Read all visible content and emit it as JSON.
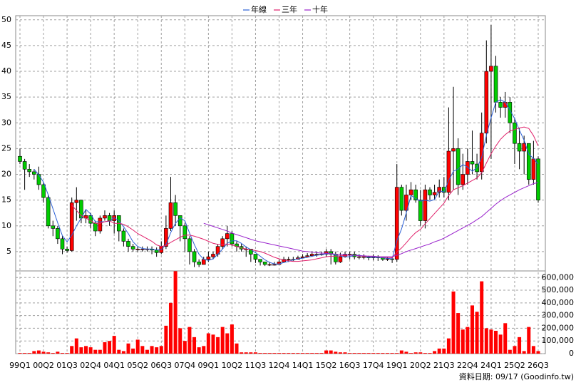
{
  "chart_data": {
    "type": "candlestick",
    "categories": [
      "99Q1",
      null,
      null,
      null,
      null,
      "00Q2",
      null,
      null,
      null,
      null,
      "01Q3",
      null,
      null,
      null,
      null,
      "02Q4",
      null,
      null,
      null,
      null,
      "04Q1",
      null,
      null,
      null,
      null,
      "05Q2",
      null,
      null,
      null,
      null,
      "06Q3",
      null,
      null,
      null,
      null,
      "07Q4",
      null,
      null,
      null,
      null,
      "09Q1",
      null,
      null,
      null,
      null,
      "10Q2",
      null,
      null,
      null,
      null,
      "11Q3",
      null,
      null,
      null,
      null,
      "12Q4",
      null,
      null,
      null,
      null,
      "14Q1",
      null,
      null,
      null,
      null,
      "15Q2",
      null,
      null,
      null,
      null,
      "16Q3",
      null,
      null,
      null,
      null,
      "17Q4",
      null,
      null,
      null,
      null,
      "19Q1",
      null,
      null,
      null,
      null,
      "20Q2",
      null,
      null,
      null,
      null,
      "21Q3",
      null,
      null,
      null,
      null,
      "22Q4",
      null,
      null,
      null,
      null,
      "24Q1",
      null,
      null,
      null,
      null,
      "25Q2",
      null,
      null,
      null,
      null,
      "26Q3"
    ],
    "open": [
      23.5,
      22.5,
      21,
      20.5,
      20,
      18,
      15.5,
      10,
      9.5,
      7.5,
      5.5,
      5.2,
      14.5,
      15,
      11.5,
      12,
      10.5,
      9,
      11.5,
      12,
      11,
      12,
      9,
      7,
      6,
      5.5,
      5.5,
      5.5,
      5.5,
      5.3,
      4.8,
      6,
      9.5,
      14.5,
      12,
      10,
      7.5,
      5,
      3,
      2.5,
      3.5,
      4,
      4.5,
      6,
      7.5,
      8.5,
      6.5,
      6,
      5.5,
      5.5,
      4.5,
      3.5,
      3,
      2.5,
      2.5,
      2.5,
      3,
      3.5,
      3.5,
      3.5,
      3.8,
      4,
      4.2,
      4.5,
      4.5,
      4.5,
      5,
      4.5,
      3,
      4,
      4.5,
      4.5,
      4,
      4,
      4,
      3.8,
      4,
      3.8,
      3.5,
      3.6,
      3.5,
      17.5,
      13,
      16,
      17,
      15,
      11,
      17,
      16,
      16.5,
      17.5,
      16.5,
      24.5,
      25,
      18,
      20,
      22.5,
      22,
      20.5,
      28,
      40,
      41,
      34,
      33,
      34,
      30,
      26,
      24.5,
      26,
      19,
      23
    ],
    "high": [
      25,
      23,
      22,
      21,
      21.5,
      18.5,
      16,
      11,
      10,
      8,
      6,
      15.5,
      17.5,
      15,
      13,
      12.5,
      11,
      12,
      13,
      12.5,
      13,
      12,
      9.5,
      7.5,
      6.5,
      6,
      6,
      6,
      6,
      5.8,
      7,
      12,
      19.5,
      16,
      12,
      10.5,
      8,
      5.5,
      3.5,
      4,
      5,
      5,
      6.5,
      8,
      10,
      9,
      7,
      6.5,
      6,
      5.5,
      4.5,
      3.5,
      3,
      3,
      3,
      3.5,
      4,
      4,
      4,
      4.2,
      4.5,
      4.7,
      5,
      5,
      5,
      5.5,
      5.5,
      5,
      4.8,
      5,
      5,
      5,
      4.5,
      4.5,
      4.2,
      4.5,
      4.3,
      4,
      4,
      4,
      22,
      18,
      18,
      18.5,
      18,
      17,
      18,
      17.5,
      18,
      19,
      19.5,
      33,
      37,
      27,
      24,
      25,
      28.5,
      24,
      32,
      46,
      49,
      43,
      35,
      36,
      35,
      31,
      29,
      27.5,
      26,
      26.5,
      23.5
    ],
    "low": [
      22,
      17,
      19.5,
      19,
      17,
      14.5,
      9.5,
      8,
      6.5,
      4.5,
      4.8,
      5,
      11,
      10.5,
      10.5,
      9.5,
      8,
      8.5,
      11,
      10,
      8.5,
      7,
      6,
      5,
      5,
      5,
      5,
      5,
      4.5,
      4,
      4.5,
      5.5,
      9,
      10,
      7,
      5,
      2.5,
      2,
      2,
      2.5,
      3,
      3.5,
      4,
      5.5,
      6,
      6,
      5,
      5,
      4,
      3,
      2.8,
      2.3,
      2.2,
      2.2,
      2.3,
      2.5,
      3,
      3,
      3.2,
      3.5,
      3.7,
      4,
      4,
      4,
      4.2,
      4,
      2.5,
      2.5,
      2.8,
      3.8,
      3.5,
      3.5,
      3.5,
      3.5,
      3.3,
      3.3,
      3.2,
      3.2,
      3.2,
      2.8,
      3,
      12,
      11,
      15,
      14.5,
      10,
      9.5,
      15,
      15,
      15.5,
      15.5,
      15,
      17,
      16,
      17,
      18,
      20,
      19,
      19,
      26,
      23,
      32,
      31,
      31,
      28,
      22,
      21,
      20,
      18,
      18,
      14.5
    ],
    "close": [
      22.5,
      21,
      20.5,
      20,
      18,
      15.5,
      10,
      9.5,
      7.5,
      5.5,
      5.2,
      14.5,
      15,
      11.5,
      12,
      10.5,
      9,
      11.5,
      12,
      11,
      12,
      9,
      7,
      6,
      5.5,
      5.5,
      5.5,
      5.5,
      5.3,
      4.8,
      6,
      9.5,
      14.5,
      12,
      10,
      7.5,
      5,
      3,
      2.5,
      3.5,
      4,
      4.5,
      6,
      7.5,
      8.5,
      6.5,
      6,
      5.5,
      5.5,
      4.5,
      3.5,
      3,
      2.5,
      2.5,
      2.5,
      3,
      3.5,
      3.5,
      3.5,
      3.8,
      4,
      4.2,
      4.5,
      4.5,
      4.5,
      5,
      4.5,
      3,
      4,
      4.5,
      4.5,
      4,
      4,
      4,
      3.8,
      4,
      3.8,
      3.5,
      3.6,
      3.5,
      17.5,
      13,
      16,
      17,
      15,
      11,
      17,
      16,
      16.5,
      17.5,
      16.5,
      24.5,
      25,
      18,
      20,
      22.5,
      22,
      20.5,
      28,
      40,
      41,
      34,
      33,
      34,
      30,
      26,
      24.5,
      26,
      19,
      23,
      15
    ],
    "up_color": "#ff0000",
    "down_color": "#00cc00",
    "series": [
      {
        "name": "年線",
        "color": "#2a5fd6",
        "values": [
          null,
          null,
          null,
          21,
          19.9,
          18.5,
          16,
          13.3,
          10.6,
          8.1,
          6.9,
          8.2,
          10,
          11.5,
          13.2,
          12.3,
          10.8,
          10.8,
          10.8,
          10.9,
          11.6,
          11,
          9.8,
          8.5,
          6.9,
          6,
          5.6,
          5.5,
          5.5,
          5.3,
          5.4,
          6.4,
          8.7,
          10.5,
          11.5,
          11,
          8.6,
          6.4,
          4.5,
          3.5,
          3.3,
          3.6,
          4.5,
          5.5,
          6.6,
          7.1,
          7.1,
          6.6,
          5.9,
          5.4,
          4.8,
          4.1,
          3.4,
          2.9,
          2.6,
          2.6,
          2.9,
          3.1,
          3.4,
          3.6,
          3.7,
          3.9,
          4.1,
          4.3,
          4.4,
          4.6,
          4.6,
          4.3,
          4.1,
          4,
          4,
          4.3,
          4.3,
          4.1,
          3.9,
          3.9,
          3.9,
          3.8,
          3.7,
          3.6,
          7.1,
          9.4,
          12.5,
          15.9,
          15.3,
          14.8,
          15,
          14.8,
          15.1,
          16.8,
          16.6,
          18.8,
          20.6,
          21,
          21.9,
          21.4,
          20.6,
          21.3,
          23.3,
          27.6,
          31,
          34,
          34.5,
          34,
          32.5,
          30.8,
          28.6,
          26.6,
          23.9,
          23.1,
          22
        ]
      },
      {
        "name": "三年",
        "color": "#e0206a",
        "values": [
          null,
          null,
          null,
          null,
          null,
          null,
          null,
          null,
          null,
          null,
          null,
          14,
          13,
          12,
          11.5,
          11,
          10.5,
          10.5,
          10.8,
          11,
          10.5,
          10.5,
          10.3,
          9.8,
          9.2,
          8.5,
          8,
          7.5,
          7,
          6.3,
          6,
          6.2,
          6.8,
          7.3,
          7.8,
          8.2,
          8.2,
          8,
          7.7,
          7.4,
          7,
          6.6,
          6.4,
          6.4,
          6.5,
          6.3,
          6,
          5.7,
          5.5,
          5.4,
          5.2,
          5,
          4.7,
          4.3,
          3.9,
          3.6,
          3.4,
          3.2,
          3.1,
          3.1,
          3.2,
          3.3,
          3.4,
          3.6,
          3.8,
          4,
          4.1,
          4.1,
          4.2,
          4.3,
          4.3,
          4.3,
          4.2,
          4.1,
          4.1,
          4.1,
          4,
          3.9,
          3.9,
          3.8,
          4.9,
          5.7,
          6.7,
          7.8,
          8.7,
          9.3,
          10.4,
          11.4,
          12.4,
          13.4,
          14.4,
          15.9,
          17,
          17.4,
          17.8,
          18.3,
          18.8,
          19.3,
          20.3,
          22.2,
          24,
          25.5,
          26.8,
          27.7,
          28.4,
          28.7,
          29,
          29.2,
          28.9,
          27.5,
          25.5
        ]
      },
      {
        "name": "十年",
        "color": "#9922cc",
        "values": [
          null,
          null,
          null,
          null,
          null,
          null,
          null,
          null,
          null,
          null,
          null,
          null,
          null,
          null,
          null,
          null,
          null,
          null,
          null,
          null,
          null,
          null,
          null,
          null,
          null,
          null,
          null,
          null,
          null,
          null,
          null,
          null,
          null,
          null,
          null,
          null,
          null,
          null,
          null,
          10.5,
          10.2,
          9.9,
          9.6,
          9.3,
          9,
          8.6,
          8.3,
          8,
          7.7,
          7.4,
          7.1,
          6.9,
          6.7,
          6.5,
          6.3,
          6.1,
          5.9,
          5.7,
          5.5,
          5.3,
          5.1,
          5,
          4.9,
          4.8,
          4.7,
          4.7,
          4.6,
          4.5,
          4.5,
          4.4,
          4.3,
          4.3,
          4.2,
          4.2,
          4.1,
          4.1,
          4,
          4,
          4,
          4,
          4.3,
          4.6,
          5,
          5.3,
          5.6,
          5.9,
          6.2,
          6.5,
          6.9,
          7.2,
          7.6,
          8.1,
          8.6,
          9.1,
          9.6,
          10.1,
          10.6,
          11.2,
          11.8,
          12.6,
          13.4,
          14.2,
          14.9,
          15.5,
          16,
          16.5,
          17,
          17.4,
          17.8,
          18.2,
          18.4
        ]
      }
    ],
    "volume": {
      "axis": "y2",
      "color": "#ff0000",
      "values": [
        5000,
        5000,
        5000,
        20000,
        25000,
        15000,
        10000,
        5000,
        15000,
        5000,
        5000,
        60000,
        120000,
        50000,
        60000,
        50000,
        30000,
        30000,
        90000,
        100000,
        140000,
        30000,
        20000,
        80000,
        40000,
        110000,
        60000,
        30000,
        60000,
        50000,
        60000,
        220000,
        400000,
        650000,
        200000,
        100000,
        210000,
        130000,
        50000,
        60000,
        160000,
        150000,
        130000,
        210000,
        160000,
        230000,
        80000,
        10000,
        10000,
        10000,
        10000,
        5000,
        5000,
        5000,
        5000,
        5000,
        5000,
        5000,
        5000,
        5000,
        5000,
        5000,
        5000,
        5000,
        5000,
        25000,
        25000,
        15000,
        10000,
        10000,
        5000,
        5000,
        5000,
        5000,
        5000,
        5000,
        5000,
        5000,
        5000,
        5000,
        5000,
        25000,
        15000,
        5000,
        10000,
        10000,
        5000,
        5000,
        20000,
        40000,
        40000,
        120000,
        490000,
        320000,
        190000,
        210000,
        380000,
        330000,
        570000,
        200000,
        190000,
        180000,
        150000,
        240000,
        30000,
        60000,
        130000,
        20000,
        210000,
        60000,
        20000
      ]
    },
    "ylim": [
      1.25,
      50.8
    ],
    "yticks": [
      5,
      10,
      15,
      20,
      25,
      30,
      35,
      40,
      45,
      50
    ],
    "y2lim": [
      0,
      652000
    ],
    "y2ticks": [
      0,
      {
        "value": 100000,
        "label": "100,000"
      },
      {
        "value": 200000,
        "label": "200,000"
      },
      {
        "value": 300000,
        "label": "300,000"
      },
      {
        "value": 400000,
        "label": "400,000"
      },
      {
        "value": 500000,
        "label": "500,000"
      },
      {
        "value": 600000,
        "label": "600,000"
      }
    ],
    "grid": true,
    "legend": "top",
    "note": "資料日期: 09/17 (Goodinfo.tw)"
  }
}
